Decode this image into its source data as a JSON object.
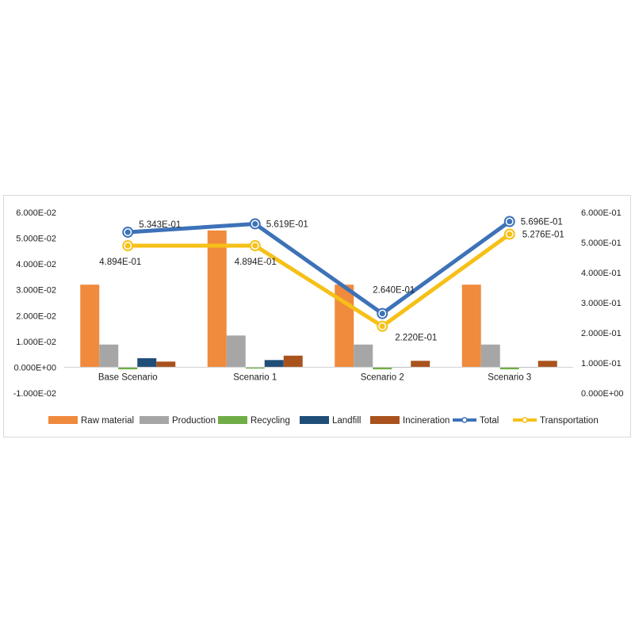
{
  "chart_data": {
    "type": "bar",
    "title": "",
    "xlabel": "",
    "ylabel": "",
    "categories": [
      "Base Scenario",
      "Scenario 1",
      "Scenario 2",
      "Scenario 3"
    ],
    "y_left": {
      "ylim": [
        -0.01,
        0.06
      ],
      "ticks": [
        -0.01,
        0,
        0.01,
        0.02,
        0.03,
        0.04,
        0.05,
        0.06
      ],
      "tick_labels": [
        "-1.000E-02",
        "0.000E+00",
        "1.000E-02",
        "2.000E-02",
        "3.000E-02",
        "4.000E-02",
        "5.000E-02",
        "6.000E-02"
      ]
    },
    "y_right": {
      "ylim": [
        0,
        0.6
      ],
      "ticks": [
        0,
        0.1,
        0.2,
        0.3,
        0.4,
        0.5,
        0.6
      ],
      "tick_labels": [
        "0.000E+00",
        "1.000E-01",
        "2.000E-01",
        "3.000E-01",
        "4.000E-01",
        "5.000E-01",
        "6.000E-01"
      ]
    },
    "bar_series": [
      {
        "name": "Raw material",
        "color": "#f08a3c",
        "values": [
          0.032,
          0.053,
          0.032,
          0.032
        ]
      },
      {
        "name": "Production",
        "color": "#a6a6a6",
        "values": [
          0.0088,
          0.0123,
          0.0088,
          0.0088
        ]
      },
      {
        "name": "Recycling",
        "color": "#70ad47",
        "values": [
          -0.0008,
          -0.0005,
          -0.0008,
          -0.0008
        ]
      },
      {
        "name": "Landfill",
        "color": "#1f4e79",
        "values": [
          0.0035,
          0.0028,
          0,
          0
        ]
      },
      {
        "name": "Incineration",
        "color": "#a9521d",
        "values": [
          0.0022,
          0.0045,
          0.0025,
          0.0025
        ]
      }
    ],
    "line_series": [
      {
        "name": "Total",
        "color": "#3d72b8",
        "values": [
          0.5343,
          0.5619,
          0.264,
          0.5696
        ],
        "labels": [
          "5.343E-01",
          "5.619E-01",
          "2.640E-01",
          "5.696E-01"
        ]
      },
      {
        "name": "Transportation",
        "color": "#f6c017",
        "values": [
          0.4894,
          0.4894,
          0.222,
          0.5276
        ],
        "labels": [
          "4.894E-01",
          "4.894E-01",
          "2.220E-01",
          "5.276E-01"
        ]
      }
    ],
    "legend": "bottom",
    "grid": false
  }
}
